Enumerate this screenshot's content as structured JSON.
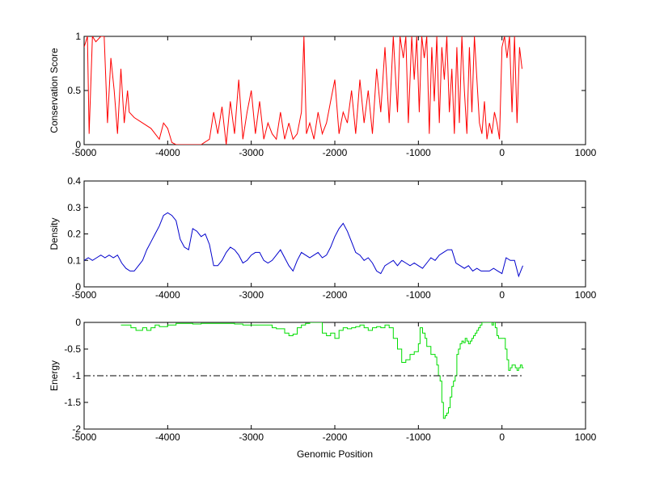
{
  "chart_data": [
    {
      "type": "line",
      "xlabel": "",
      "ylabel": "Conservation Score",
      "xlim": [
        -5000,
        1000
      ],
      "ylim": [
        0,
        1
      ],
      "x_ticks": [
        -5000,
        -4000,
        -3000,
        -2000,
        -1000,
        0,
        1000
      ],
      "y_ticks": [
        0,
        0.5,
        1
      ],
      "x_tick_labels": [
        "-5000",
        "-4000",
        "-3000",
        "-2000",
        "-1000",
        "0",
        "1000"
      ],
      "y_tick_labels": [
        "0",
        "0.5",
        "1"
      ],
      "grid": false,
      "series": [
        {
          "color": "#ff0000",
          "x": [
            -5000,
            -4960,
            -4940,
            -4900,
            -4860,
            -4800,
            -4760,
            -4720,
            -4680,
            -4640,
            -4600,
            -4560,
            -4520,
            -4480,
            -4460,
            -4400,
            -4300,
            -4200,
            -4100,
            -4050,
            -4000,
            -3950,
            -3900,
            -3800,
            -3700,
            -3600,
            -3500,
            -3450,
            -3400,
            -3350,
            -3300,
            -3250,
            -3200,
            -3150,
            -3100,
            -3050,
            -3000,
            -2950,
            -2900,
            -2850,
            -2800,
            -2750,
            -2700,
            -2650,
            -2600,
            -2550,
            -2500,
            -2450,
            -2400,
            -2370,
            -2340,
            -2300,
            -2250,
            -2200,
            -2150,
            -2100,
            -2050,
            -2000,
            -1950,
            -1900,
            -1850,
            -1800,
            -1750,
            -1700,
            -1650,
            -1600,
            -1550,
            -1500,
            -1450,
            -1400,
            -1350,
            -1300,
            -1250,
            -1220,
            -1180,
            -1150,
            -1120,
            -1080,
            -1050,
            -1020,
            -990,
            -960,
            -930,
            -900,
            -870,
            -840,
            -810,
            -780,
            -750,
            -720,
            -690,
            -660,
            -630,
            -600,
            -570,
            -540,
            -510,
            -480,
            -450,
            -420,
            -390,
            -360,
            -330,
            -300,
            -270,
            -240,
            -210,
            -180,
            -150,
            -120,
            -90,
            -60,
            -30,
            0,
            30,
            60,
            90,
            120,
            150,
            180,
            210,
            240
          ],
          "y": [
            0.9,
            1,
            0.1,
            1,
            0.95,
            1,
            1,
            0.2,
            0.8,
            0.5,
            0.1,
            0.7,
            0.2,
            0.5,
            0.3,
            0.25,
            0.2,
            0.15,
            0.05,
            0.2,
            0.15,
            0.02,
            0.0,
            0.0,
            0.0,
            0.0,
            0.05,
            0.3,
            0.1,
            0.35,
            0.0,
            0.4,
            0.1,
            0.6,
            0.05,
            0.3,
            0.5,
            0.1,
            0.4,
            0.05,
            0.2,
            0.1,
            0.05,
            0.3,
            0.05,
            0.2,
            0.05,
            0.1,
            0.3,
            1.0,
            0.1,
            0.2,
            0.05,
            0.3,
            0.1,
            0.2,
            0.4,
            0.6,
            0.1,
            0.3,
            0.2,
            0.5,
            0.1,
            0.6,
            0.2,
            0.5,
            0.1,
            0.7,
            0.3,
            0.9,
            0.2,
            1.0,
            0.3,
            1.0,
            0.8,
            1.0,
            0.2,
            1.0,
            0.6,
            1.0,
            0.3,
            1.0,
            0.8,
            1.0,
            0.1,
            0.9,
            0.4,
            1.0,
            0.2,
            0.9,
            0.6,
            1.0,
            0.3,
            0.7,
            0.1,
            0.9,
            0.2,
            1.0,
            0.5,
            0.1,
            0.9,
            0.3,
            1.0,
            0.6,
            0.2,
            0.1,
            0.4,
            0.05,
            0.2,
            0.1,
            0.3,
            0.2,
            0.05,
            0.9,
            1.0,
            0.8,
            1.0,
            0.3,
            1.0,
            0.2,
            0.9,
            0.7
          ]
        }
      ]
    },
    {
      "type": "line",
      "xlabel": "",
      "ylabel": "Density",
      "xlim": [
        -5000,
        1000
      ],
      "ylim": [
        0,
        0.4
      ],
      "x_ticks": [
        -5000,
        -4000,
        -3000,
        -2000,
        -1000,
        0,
        1000
      ],
      "y_ticks": [
        0,
        0.1,
        0.2,
        0.3,
        0.4
      ],
      "x_tick_labels": [
        "-5000",
        "-4000",
        "-3000",
        "-2000",
        "-1000",
        "0",
        "1000"
      ],
      "y_tick_labels": [
        "0",
        "0.1",
        "0.2",
        "0.3",
        "0.4"
      ],
      "grid": false,
      "series": [
        {
          "color": "#0000cc",
          "x": [
            -5000,
            -4950,
            -4900,
            -4850,
            -4800,
            -4750,
            -4700,
            -4650,
            -4600,
            -4550,
            -4500,
            -4450,
            -4400,
            -4350,
            -4300,
            -4250,
            -4200,
            -4150,
            -4100,
            -4050,
            -4000,
            -3950,
            -3900,
            -3850,
            -3800,
            -3750,
            -3700,
            -3650,
            -3600,
            -3550,
            -3500,
            -3450,
            -3400,
            -3350,
            -3300,
            -3250,
            -3200,
            -3150,
            -3100,
            -3050,
            -3000,
            -2950,
            -2900,
            -2850,
            -2800,
            -2750,
            -2700,
            -2650,
            -2600,
            -2550,
            -2500,
            -2450,
            -2400,
            -2350,
            -2300,
            -2250,
            -2200,
            -2150,
            -2100,
            -2050,
            -2000,
            -1950,
            -1900,
            -1850,
            -1800,
            -1750,
            -1700,
            -1650,
            -1600,
            -1550,
            -1500,
            -1450,
            -1400,
            -1350,
            -1300,
            -1250,
            -1200,
            -1150,
            -1100,
            -1050,
            -1000,
            -950,
            -900,
            -850,
            -800,
            -750,
            -700,
            -650,
            -600,
            -550,
            -500,
            -450,
            -400,
            -350,
            -300,
            -250,
            -200,
            -150,
            -100,
            -50,
            0,
            50,
            100,
            150,
            200,
            250
          ],
          "y": [
            0.1,
            0.11,
            0.1,
            0.11,
            0.12,
            0.11,
            0.12,
            0.11,
            0.12,
            0.09,
            0.07,
            0.06,
            0.06,
            0.08,
            0.1,
            0.14,
            0.17,
            0.2,
            0.23,
            0.27,
            0.28,
            0.27,
            0.25,
            0.18,
            0.15,
            0.14,
            0.22,
            0.21,
            0.19,
            0.2,
            0.16,
            0.08,
            0.08,
            0.1,
            0.13,
            0.15,
            0.14,
            0.12,
            0.09,
            0.1,
            0.12,
            0.13,
            0.13,
            0.1,
            0.09,
            0.1,
            0.12,
            0.14,
            0.11,
            0.08,
            0.06,
            0.1,
            0.13,
            0.12,
            0.11,
            0.12,
            0.13,
            0.11,
            0.12,
            0.15,
            0.19,
            0.22,
            0.24,
            0.21,
            0.17,
            0.13,
            0.12,
            0.1,
            0.11,
            0.09,
            0.06,
            0.05,
            0.08,
            0.09,
            0.1,
            0.08,
            0.1,
            0.09,
            0.08,
            0.09,
            0.08,
            0.07,
            0.09,
            0.11,
            0.1,
            0.12,
            0.13,
            0.14,
            0.14,
            0.09,
            0.08,
            0.07,
            0.08,
            0.06,
            0.07,
            0.06,
            0.06,
            0.06,
            0.07,
            0.06,
            0.05,
            0.11,
            0.1,
            0.1,
            0.04,
            0.08
          ]
        }
      ]
    },
    {
      "type": "line",
      "xlabel": "Genomic Position",
      "ylabel": "Energy",
      "xlim": [
        -5000,
        1000
      ],
      "ylim": [
        -2,
        0
      ],
      "x_ticks": [
        -5000,
        -4000,
        -3000,
        -2000,
        -1000,
        0,
        1000
      ],
      "y_ticks": [
        -2,
        -1.5,
        -1,
        -0.5,
        0
      ],
      "x_tick_labels": [
        "-5000",
        "-4000",
        "-3000",
        "-2000",
        "-1000",
        "0",
        "1000"
      ],
      "y_tick_labels": [
        "-2",
        "-1.5",
        "-1",
        "-0.5",
        "0"
      ],
      "grid": false,
      "series": [
        {
          "color": "#00dd00",
          "step": true,
          "x": [
            -4560,
            -4440,
            -4380,
            -4300,
            -4250,
            -4200,
            -4150,
            -4100,
            -4000,
            -3900,
            -3800,
            -3700,
            -3600,
            -3500,
            -3400,
            -3300,
            -3200,
            -3100,
            -3000,
            -2900,
            -2800,
            -2750,
            -2700,
            -2600,
            -2550,
            -2500,
            -2450,
            -2400,
            -2350,
            -2300,
            -2250,
            -2200,
            -2150,
            -2100,
            -2050,
            -2000,
            -1950,
            -1900,
            -1850,
            -1800,
            -1750,
            -1700,
            -1650,
            -1600,
            -1550,
            -1500,
            -1450,
            -1400,
            -1350,
            -1300,
            -1250,
            -1200,
            -1150,
            -1100,
            -1050,
            -1000,
            -980,
            -950,
            -920,
            -900,
            -880,
            -850,
            -800,
            -780,
            -760,
            -740,
            -720,
            -700,
            -680,
            -660,
            -640,
            -620,
            -600,
            -580,
            -560,
            -540,
            -520,
            -500,
            -480,
            -460,
            -440,
            -420,
            -400,
            -380,
            -360,
            -340,
            -320,
            -300,
            -280,
            -260,
            -240,
            -220,
            -200,
            -180,
            -160,
            -140,
            -120,
            -100,
            -80,
            -60,
            -40,
            -20,
            0,
            20,
            40,
            60,
            80,
            100,
            120,
            140,
            160,
            180,
            200,
            220,
            240,
            260
          ],
          "y": [
            -0.05,
            -0.1,
            -0.15,
            -0.1,
            -0.15,
            -0.1,
            -0.05,
            -0.08,
            -0.05,
            -0.02,
            -0.02,
            -0.03,
            -0.02,
            -0.02,
            -0.02,
            -0.02,
            -0.03,
            -0.05,
            -0.05,
            -0.05,
            -0.05,
            -0.1,
            -0.12,
            -0.2,
            -0.25,
            -0.22,
            -0.1,
            -0.05,
            -0.02,
            0.0,
            0.0,
            0.0,
            -0.2,
            -0.25,
            -0.2,
            -0.3,
            -0.15,
            -0.1,
            -0.12,
            -0.1,
            -0.08,
            -0.05,
            -0.1,
            -0.15,
            -0.1,
            -0.08,
            -0.1,
            -0.05,
            -0.1,
            -0.3,
            -0.5,
            -0.75,
            -0.7,
            -0.6,
            -0.55,
            -0.4,
            -0.1,
            -0.2,
            -0.3,
            -0.45,
            -0.45,
            -0.6,
            -0.65,
            -0.8,
            -1.0,
            -1.1,
            -1.5,
            -1.8,
            -1.75,
            -1.7,
            -1.6,
            -1.4,
            -1.2,
            -1.1,
            -1.0,
            -0.6,
            -0.5,
            -0.4,
            -0.35,
            -0.38,
            -0.3,
            -0.35,
            -0.4,
            -0.35,
            -0.3,
            -0.25,
            -0.2,
            -0.15,
            -0.1,
            -0.05,
            0.0,
            0.0,
            0.0,
            0.0,
            0.0,
            0.0,
            -0.05,
            0.0,
            -0.1,
            -0.25,
            -0.3,
            -0.3,
            -0.3,
            -0.3,
            -0.5,
            -0.7,
            -0.9,
            -0.85,
            -0.8,
            -0.8,
            -0.85,
            -0.9,
            -0.85,
            -0.8,
            -0.85,
            -0.85
          ],
          "reference_line_y": -1,
          "reference_line_x": [
            -5000,
            250
          ],
          "reference_line_style": "dash-dot",
          "reference_line_color": "#000000"
        }
      ]
    }
  ]
}
